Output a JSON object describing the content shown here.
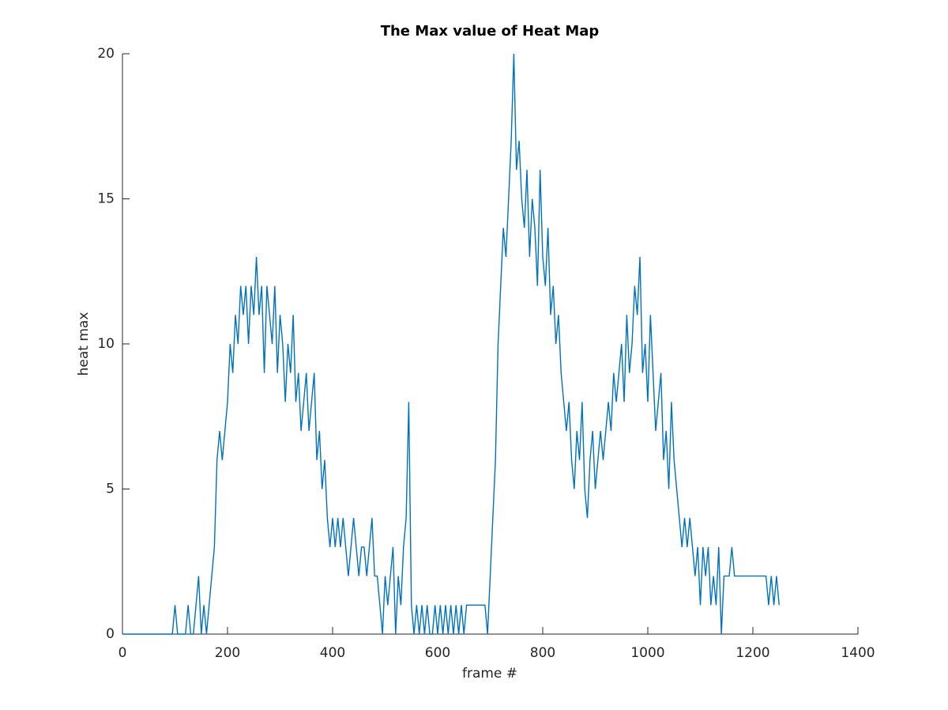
{
  "chart_data": {
    "type": "line",
    "title": "The Max value of Heat Map",
    "xlabel": "frame #",
    "ylabel": "heat max",
    "x": [
      0,
      5,
      10,
      15,
      20,
      25,
      30,
      35,
      40,
      45,
      50,
      55,
      60,
      65,
      70,
      75,
      80,
      85,
      90,
      95,
      100,
      105,
      110,
      115,
      120,
      125,
      130,
      135,
      140,
      145,
      150,
      155,
      160,
      165,
      170,
      175,
      180,
      185,
      190,
      195,
      200,
      205,
      210,
      215,
      220,
      225,
      230,
      235,
      240,
      245,
      250,
      255,
      260,
      265,
      270,
      275,
      280,
      285,
      290,
      295,
      300,
      305,
      310,
      315,
      320,
      325,
      330,
      335,
      340,
      345,
      350,
      355,
      360,
      365,
      370,
      375,
      380,
      385,
      390,
      395,
      400,
      405,
      410,
      415,
      420,
      425,
      430,
      435,
      440,
      445,
      450,
      455,
      460,
      465,
      470,
      475,
      480,
      485,
      490,
      495,
      500,
      505,
      510,
      515,
      520,
      525,
      530,
      535,
      540,
      545,
      550,
      555,
      560,
      565,
      570,
      575,
      580,
      585,
      590,
      595,
      600,
      605,
      610,
      615,
      620,
      625,
      630,
      635,
      640,
      645,
      650,
      655,
      660,
      665,
      670,
      675,
      680,
      685,
      690,
      695,
      700,
      705,
      710,
      715,
      720,
      725,
      730,
      735,
      740,
      745,
      750,
      755,
      760,
      765,
      770,
      775,
      780,
      785,
      790,
      795,
      800,
      805,
      810,
      815,
      820,
      825,
      830,
      835,
      840,
      845,
      850,
      855,
      860,
      865,
      870,
      875,
      880,
      885,
      890,
      895,
      900,
      905,
      910,
      915,
      920,
      925,
      930,
      935,
      940,
      945,
      950,
      955,
      960,
      965,
      970,
      975,
      980,
      985,
      990,
      995,
      1000,
      1005,
      1010,
      1015,
      1020,
      1025,
      1030,
      1035,
      1040,
      1045,
      1050,
      1055,
      1060,
      1065,
      1070,
      1075,
      1080,
      1085,
      1090,
      1095,
      1100,
      1105,
      1110,
      1115,
      1120,
      1125,
      1130,
      1135,
      1140,
      1145,
      1150,
      1155,
      1160,
      1165,
      1170,
      1175,
      1180,
      1185,
      1190,
      1195,
      1200,
      1205,
      1210,
      1215,
      1220,
      1225,
      1230,
      1235,
      1240,
      1245,
      1250
    ],
    "series": [
      {
        "color": "#0072bd",
        "values": [
          0,
          0,
          0,
          0,
          0,
          0,
          0,
          0,
          0,
          0,
          0,
          0,
          0,
          0,
          0,
          0,
          0,
          0,
          0,
          0,
          1,
          0,
          0,
          0,
          0,
          1,
          0,
          0,
          1,
          2,
          0,
          1,
          0,
          1,
          2,
          3,
          6,
          7,
          6,
          7,
          8,
          10,
          9,
          11,
          10,
          12,
          11,
          12,
          10,
          12,
          11,
          13,
          11,
          12,
          9,
          12,
          11,
          10,
          12,
          9,
          11,
          10,
          8,
          10,
          9,
          11,
          8,
          9,
          7,
          8,
          9,
          7,
          8,
          9,
          6,
          7,
          5,
          6,
          4,
          3,
          4,
          3,
          4,
          3,
          4,
          3,
          2,
          3,
          4,
          3,
          2,
          3,
          3,
          2,
          3,
          4,
          2,
          2,
          1,
          0,
          2,
          1,
          2,
          3,
          0,
          2,
          1,
          3,
          4,
          8,
          1,
          0,
          1,
          0,
          1,
          0,
          1,
          0,
          0,
          1,
          0,
          1,
          0,
          1,
          0,
          1,
          0,
          1,
          0,
          1,
          0,
          1,
          1,
          1,
          1,
          1,
          1,
          1,
          1,
          0,
          2,
          4,
          6,
          10,
          12,
          14,
          13,
          15,
          17,
          20,
          16,
          17,
          15,
          14,
          16,
          13,
          15,
          14,
          12,
          16,
          13,
          12,
          14,
          11,
          12,
          10,
          11,
          9,
          8,
          7,
          8,
          6,
          5,
          7,
          6,
          8,
          5,
          4,
          6,
          7,
          5,
          6,
          7,
          6,
          7,
          8,
          7,
          9,
          8,
          9,
          10,
          8,
          11,
          9,
          10,
          12,
          11,
          13,
          9,
          10,
          8,
          11,
          9,
          7,
          8,
          9,
          6,
          7,
          5,
          8,
          6,
          5,
          4,
          3,
          4,
          3,
          4,
          3,
          2,
          3,
          1,
          3,
          2,
          3,
          1,
          2,
          1,
          3,
          0,
          2,
          2,
          2,
          3,
          2,
          2,
          2,
          2,
          2,
          2,
          2,
          2,
          2,
          2,
          2,
          2,
          2,
          1,
          2,
          1,
          2,
          1
        ]
      }
    ],
    "xlim": [
      0,
      1400
    ],
    "xticks": [
      0,
      200,
      400,
      600,
      800,
      1000,
      1200,
      1400
    ],
    "ylim": [
      0,
      20
    ],
    "yticks": [
      0,
      5,
      10,
      15,
      20
    ]
  }
}
